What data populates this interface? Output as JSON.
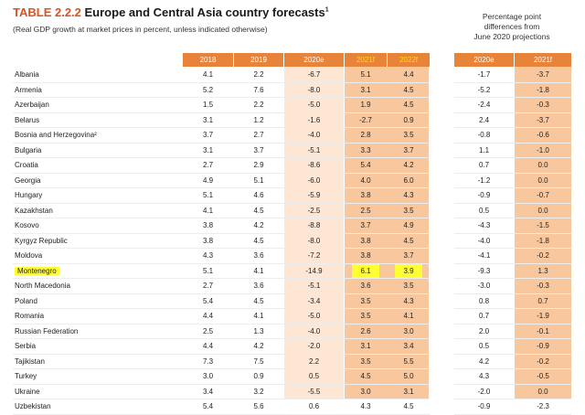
{
  "title_number": "TABLE 2.2.2",
  "title_text": "Europe and Central Asia country forecasts",
  "title_footnote": "1",
  "subtitle": "(Real GDP growth at market prices in percent, unless indicated otherwise)",
  "diff_header": {
    "line1": "Percentage point",
    "line2": "differences from",
    "line3": "June 2020 projections"
  },
  "columns": [
    "2018",
    "2019",
    "2020e",
    "2021f",
    "2022f"
  ],
  "diff_columns": [
    "2020e",
    "2021f"
  ],
  "highlight_color": "#ffff33",
  "accent_color": "#e8833a",
  "highlighted_row": "Montenegro",
  "rows": [
    {
      "country": "Albania",
      "v2018": "4.1",
      "v2019": "2.2",
      "v2020e": "-6.7",
      "v2021f": "5.1",
      "v2022f": "4.4",
      "d2020e": "-1.7",
      "d2021f": "-3.7"
    },
    {
      "country": "Armenia",
      "v2018": "5.2",
      "v2019": "7.6",
      "v2020e": "-8.0",
      "v2021f": "3.1",
      "v2022f": "4.5",
      "d2020e": "-5.2",
      "d2021f": "-1.8"
    },
    {
      "country": "Azerbaijan",
      "v2018": "1.5",
      "v2019": "2.2",
      "v2020e": "-5.0",
      "v2021f": "1.9",
      "v2022f": "4.5",
      "d2020e": "-2.4",
      "d2021f": "-0.3"
    },
    {
      "country": "Belarus",
      "v2018": "3.1",
      "v2019": "1.2",
      "v2020e": "-1.6",
      "v2021f": "-2.7",
      "v2022f": "0.9",
      "d2020e": "2.4",
      "d2021f": "-3.7"
    },
    {
      "country": "Bosnia and Herzegovina²",
      "v2018": "3.7",
      "v2019": "2.7",
      "v2020e": "-4.0",
      "v2021f": "2.8",
      "v2022f": "3.5",
      "d2020e": "-0.8",
      "d2021f": "-0.6"
    },
    {
      "country": "Bulgaria",
      "v2018": "3.1",
      "v2019": "3.7",
      "v2020e": "-5.1",
      "v2021f": "3.3",
      "v2022f": "3.7",
      "d2020e": "1.1",
      "d2021f": "-1.0"
    },
    {
      "country": "Croatia",
      "v2018": "2.7",
      "v2019": "2.9",
      "v2020e": "-8.6",
      "v2021f": "5.4",
      "v2022f": "4.2",
      "d2020e": "0.7",
      "d2021f": "0.0"
    },
    {
      "country": "Georgia",
      "v2018": "4.9",
      "v2019": "5.1",
      "v2020e": "-6.0",
      "v2021f": "4.0",
      "v2022f": "6.0",
      "d2020e": "-1.2",
      "d2021f": "0.0"
    },
    {
      "country": "Hungary",
      "v2018": "5.1",
      "v2019": "4.6",
      "v2020e": "-5.9",
      "v2021f": "3.8",
      "v2022f": "4.3",
      "d2020e": "-0.9",
      "d2021f": "-0.7"
    },
    {
      "country": "Kazakhstan",
      "v2018": "4.1",
      "v2019": "4.5",
      "v2020e": "-2.5",
      "v2021f": "2.5",
      "v2022f": "3.5",
      "d2020e": "0.5",
      "d2021f": "0.0"
    },
    {
      "country": "Kosovo",
      "v2018": "3.8",
      "v2019": "4.2",
      "v2020e": "-8.8",
      "v2021f": "3.7",
      "v2022f": "4.9",
      "d2020e": "-4.3",
      "d2021f": "-1.5"
    },
    {
      "country": "Kyrgyz Republic",
      "v2018": "3.8",
      "v2019": "4.5",
      "v2020e": "-8.0",
      "v2021f": "3.8",
      "v2022f": "4.5",
      "d2020e": "-4.0",
      "d2021f": "-1.8"
    },
    {
      "country": "Moldova",
      "v2018": "4.3",
      "v2019": "3.6",
      "v2020e": "-7.2",
      "v2021f": "3.8",
      "v2022f": "3.7",
      "d2020e": "-4.1",
      "d2021f": "-0.2"
    },
    {
      "country": "Montenegro",
      "v2018": "5.1",
      "v2019": "4.1",
      "v2020e": "-14.9",
      "v2021f": "6.1",
      "v2022f": "3.9",
      "d2020e": "-9.3",
      "d2021f": "1.3"
    },
    {
      "country": "North Macedonia",
      "v2018": "2.7",
      "v2019": "3.6",
      "v2020e": "-5.1",
      "v2021f": "3.6",
      "v2022f": "3.5",
      "d2020e": "-3.0",
      "d2021f": "-0.3"
    },
    {
      "country": "Poland",
      "v2018": "5.4",
      "v2019": "4.5",
      "v2020e": "-3.4",
      "v2021f": "3.5",
      "v2022f": "4.3",
      "d2020e": "0.8",
      "d2021f": "0.7"
    },
    {
      "country": "Romania",
      "v2018": "4.4",
      "v2019": "4.1",
      "v2020e": "-5.0",
      "v2021f": "3.5",
      "v2022f": "4.1",
      "d2020e": "0.7",
      "d2021f": "-1.9"
    },
    {
      "country": "Russian Federation",
      "v2018": "2.5",
      "v2019": "1.3",
      "v2020e": "-4.0",
      "v2021f": "2.6",
      "v2022f": "3.0",
      "d2020e": "2.0",
      "d2021f": "-0.1"
    },
    {
      "country": "Serbia",
      "v2018": "4.4",
      "v2019": "4.2",
      "v2020e": "-2.0",
      "v2021f": "3.1",
      "v2022f": "3.4",
      "d2020e": "0.5",
      "d2021f": "-0.9"
    },
    {
      "country": "Tajikistan",
      "v2018": "7.3",
      "v2019": "7.5",
      "v2020e": "2.2",
      "v2021f": "3.5",
      "v2022f": "5.5",
      "d2020e": "4.2",
      "d2021f": "-0.2"
    },
    {
      "country": "Turkey",
      "v2018": "3.0",
      "v2019": "0.9",
      "v2020e": "0.5",
      "v2021f": "4.5",
      "v2022f": "5.0",
      "d2020e": "4.3",
      "d2021f": "-0.5"
    },
    {
      "country": "Ukraine",
      "v2018": "3.4",
      "v2019": "3.2",
      "v2020e": "-5.5",
      "v2021f": "3.0",
      "v2022f": "3.1",
      "d2020e": "-2.0",
      "d2021f": "0.0"
    },
    {
      "country": "Uzbekistan",
      "v2018": "5.4",
      "v2019": "5.6",
      "v2020e": "0.6",
      "v2021f": "4.3",
      "v2022f": "4.5",
      "d2020e": "-0.9",
      "d2021f": "-2.3"
    }
  ]
}
